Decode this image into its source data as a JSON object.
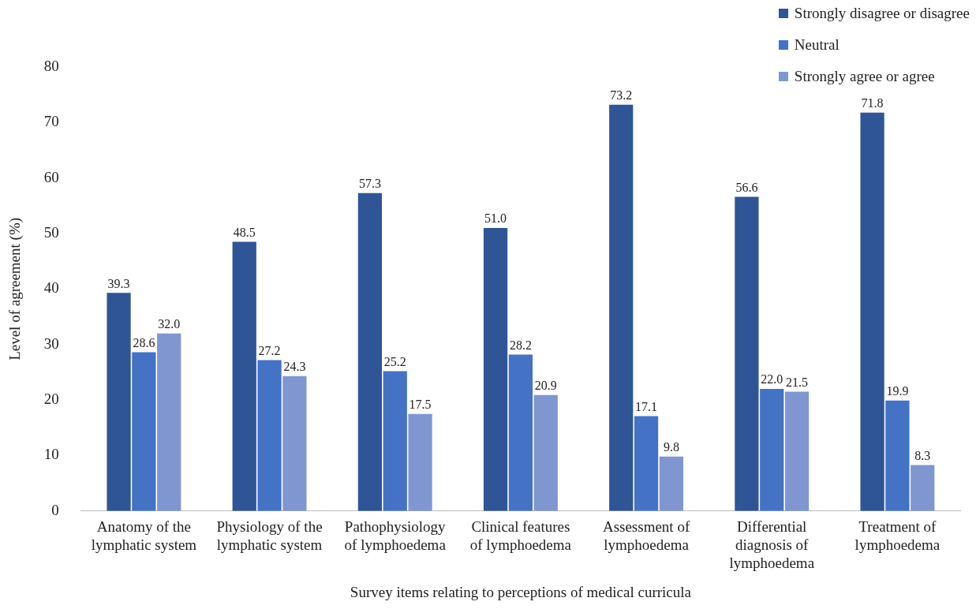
{
  "chart_data": {
    "type": "bar",
    "xlabel": "Survey items relating to perceptions of medical curricula",
    "ylabel": "Level of agreement (%)",
    "categories": [
      "Anatomy of the lymphatic system",
      "Physiology of the lymphatic system",
      "Pathophysiology of lymphoedema",
      "Clinical features of lymphoedema",
      "Assessment of lymphoedema",
      "Differential diagnosis of lymphoedema",
      "Treatment of lymphoedema"
    ],
    "series": [
      {
        "name": "Strongly disagree or disagree",
        "color": "#2f5597",
        "values": [
          39.3,
          48.5,
          57.3,
          51.0,
          73.2,
          56.6,
          71.8
        ],
        "value_labels": [
          "39.3",
          "48.5",
          "57.3",
          "51.0",
          "73.2",
          "56.6",
          "71.8"
        ]
      },
      {
        "name": "Neutral",
        "color": "#4472c4",
        "values": [
          28.6,
          27.2,
          25.2,
          28.2,
          17.1,
          22.0,
          19.9
        ],
        "value_labels": [
          "28.6",
          "27.2",
          "25.2",
          "28.2",
          "17.1",
          "22.0",
          "19.9"
        ]
      },
      {
        "name": "Strongly agree or agree",
        "color": "#7f96d1",
        "values": [
          32.0,
          24.3,
          17.5,
          20.9,
          9.8,
          21.5,
          8.3
        ],
        "value_labels": [
          "32.0",
          "24.3",
          "17.5",
          "20.9",
          "9.8",
          "21.5",
          "8.3"
        ]
      }
    ],
    "ylim": [
      0,
      80
    ],
    "yticks": [
      0,
      10,
      20,
      30,
      40,
      50,
      60,
      70,
      80
    ],
    "grid": false,
    "legend": "top right"
  }
}
